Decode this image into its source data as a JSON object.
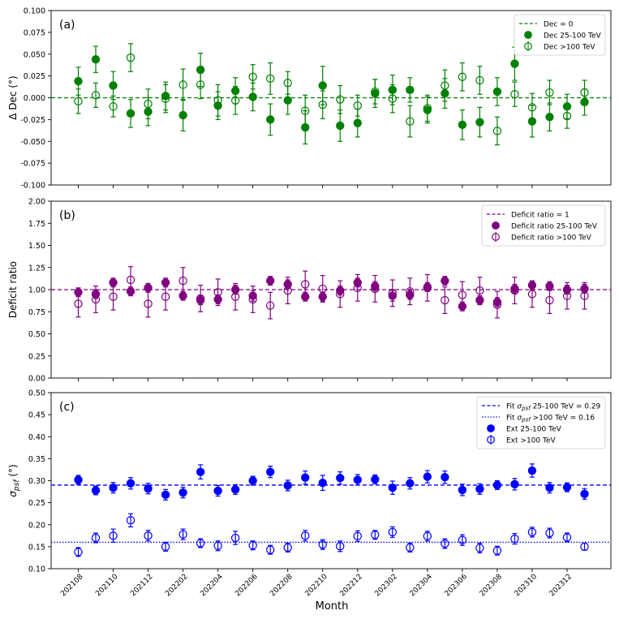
{
  "figure": {
    "xlabel": "Month"
  },
  "months": [
    "202108",
    "202109",
    "202110",
    "202111",
    "202112",
    "202201",
    "202202",
    "202203",
    "202204",
    "202205",
    "202206",
    "202207",
    "202208",
    "202209",
    "202210",
    "202211",
    "202212",
    "202301",
    "202302",
    "202303",
    "202304",
    "202305",
    "202306",
    "202307",
    "202308",
    "202309",
    "202310",
    "202311",
    "202312",
    "202401"
  ],
  "xtick_labels": [
    "202108",
    "202110",
    "202112",
    "202202",
    "202204",
    "202206",
    "202208",
    "202210",
    "202212",
    "202302",
    "202304",
    "202306",
    "202308",
    "202310",
    "202312"
  ],
  "colors": {
    "dec": "#008000",
    "deficit": "#800080",
    "ext": "#0000ff"
  },
  "chart_data": [
    {
      "type": "scatter",
      "panel_label": "(a)",
      "ylabel": "Δ Dec (°)",
      "ylim": [
        -0.1,
        0.1
      ],
      "yticks": [
        "-0.100",
        "-0.075",
        "-0.050",
        "-0.025",
        "0.000",
        "0.025",
        "0.050",
        "0.075",
        "0.100"
      ],
      "reference_line": {
        "label": "Dec = 0",
        "value": 0.0,
        "style": "dashed"
      },
      "legend_position": "top-right",
      "series": [
        {
          "name": "Dec 25-100 TeV",
          "filled": true,
          "values": [
            0.019,
            0.044,
            0.014,
            -0.018,
            -0.016,
            0.002,
            -0.02,
            0.032,
            -0.009,
            0.008,
            0.001,
            -0.025,
            -0.003,
            -0.034,
            0.014,
            -0.032,
            -0.029,
            0.005,
            0.009,
            0.009,
            -0.014,
            0.005,
            -0.031,
            -0.028,
            0.007,
            0.039,
            -0.027,
            -0.022,
            -0.01,
            -0.005
          ],
          "errors": [
            0.016,
            0.015,
            0.016,
            0.016,
            0.016,
            0.016,
            0.018,
            0.019,
            0.016,
            0.015,
            0.016,
            0.018,
            0.016,
            0.019,
            0.022,
            0.018,
            0.016,
            0.016,
            0.017,
            0.014,
            0.015,
            0.017,
            0.017,
            0.017,
            0.016,
            0.019,
            0.018,
            0.016,
            0.014,
            0.015
          ]
        },
        {
          "name": "Dec >100 TeV",
          "filled": false,
          "values": [
            -0.004,
            0.003,
            -0.01,
            0.046,
            -0.007,
            -0.001,
            0.015,
            0.015,
            -0.003,
            -0.003,
            0.024,
            0.022,
            0.017,
            -0.015,
            -0.008,
            -0.002,
            -0.009,
            0.007,
            -0.001,
            -0.027,
            -0.012,
            0.014,
            0.024,
            0.02,
            -0.038,
            0.004,
            -0.011,
            0.006,
            -0.021,
            0.006
          ],
          "errors": [
            0.014,
            0.014,
            0.012,
            0.016,
            0.017,
            0.016,
            0.018,
            0.016,
            0.018,
            0.016,
            0.014,
            0.018,
            0.013,
            0.018,
            0.016,
            0.016,
            0.012,
            0.014,
            0.016,
            0.018,
            0.015,
            0.018,
            0.016,
            0.016,
            0.016,
            0.014,
            0.016,
            0.014,
            0.014,
            0.014
          ]
        }
      ]
    },
    {
      "type": "scatter",
      "panel_label": "(b)",
      "ylabel": "Deficit ratio",
      "ylim": [
        0.0,
        2.0
      ],
      "yticks": [
        "0.00",
        "0.25",
        "0.50",
        "0.75",
        "1.00",
        "1.25",
        "1.50",
        "1.75",
        "2.00"
      ],
      "reference_line": {
        "label": "Deficit ratio = 1",
        "value": 1.0,
        "style": "dashed"
      },
      "legend_position": "top-right",
      "series": [
        {
          "name": "Deficit ratio 25-100 TeV",
          "filled": true,
          "values": [
            0.97,
            0.95,
            1.08,
            0.98,
            1.02,
            1.08,
            0.93,
            0.88,
            0.89,
            1.0,
            0.93,
            1.1,
            1.06,
            0.92,
            0.92,
            0.99,
            1.08,
            1.04,
            0.93,
            0.94,
            1.03,
            1.1,
            0.81,
            0.88,
            0.86,
            1.01,
            1.05,
            1.04,
            1.0,
            1.01
          ],
          "errors": [
            0.05,
            0.05,
            0.05,
            0.05,
            0.05,
            0.05,
            0.05,
            0.05,
            0.05,
            0.05,
            0.06,
            0.05,
            0.05,
            0.05,
            0.05,
            0.05,
            0.05,
            0.05,
            0.06,
            0.05,
            0.05,
            0.05,
            0.05,
            0.05,
            0.05,
            0.05,
            0.05,
            0.05,
            0.05,
            0.05
          ]
        },
        {
          "name": "Deficit ratio >100 TeV",
          "filled": false,
          "values": [
            0.84,
            0.89,
            0.92,
            1.11,
            0.84,
            0.92,
            1.1,
            0.9,
            0.97,
            0.92,
            0.89,
            0.82,
            0.99,
            1.06,
            1.01,
            0.95,
            1.02,
            1.01,
            0.96,
            0.98,
            1.02,
            0.88,
            0.94,
            0.99,
            0.83,
            0.99,
            0.95,
            0.88,
            0.93,
            0.93
          ],
          "errors": [
            0.15,
            0.15,
            0.15,
            0.15,
            0.15,
            0.15,
            0.15,
            0.15,
            0.15,
            0.15,
            0.15,
            0.15,
            0.15,
            0.15,
            0.15,
            0.15,
            0.15,
            0.15,
            0.15,
            0.15,
            0.15,
            0.15,
            0.15,
            0.15,
            0.15,
            0.15,
            0.15,
            0.15,
            0.15,
            0.15
          ]
        }
      ]
    },
    {
      "type": "scatter",
      "panel_label": "(c)",
      "ylabel": "σpsf (°)",
      "ylim": [
        0.1,
        0.5
      ],
      "yticks": [
        "0.10",
        "0.15",
        "0.20",
        "0.25",
        "0.30",
        "0.35",
        "0.40",
        "0.45",
        "0.50"
      ],
      "fit_lines": [
        {
          "label": "Fit σpsf 25-100 TeV = 0.29",
          "value": 0.29,
          "style": "dashed"
        },
        {
          "label": "Fit σpsf >100 TeV = 0.16",
          "value": 0.16,
          "style": "dotted"
        }
      ],
      "legend_position": "top-right",
      "series": [
        {
          "name": "Ext 25-100 TeV",
          "filled": true,
          "values": [
            0.302,
            0.278,
            0.284,
            0.294,
            0.282,
            0.268,
            0.273,
            0.32,
            0.277,
            0.28,
            0.3,
            0.32,
            0.289,
            0.307,
            0.295,
            0.306,
            0.302,
            0.303,
            0.284,
            0.294,
            0.309,
            0.308,
            0.279,
            0.281,
            0.29,
            0.292,
            0.323,
            0.284,
            0.285,
            0.27
          ],
          "errors": [
            0.01,
            0.01,
            0.012,
            0.013,
            0.012,
            0.012,
            0.012,
            0.016,
            0.012,
            0.011,
            0.01,
            0.013,
            0.012,
            0.015,
            0.017,
            0.014,
            0.012,
            0.01,
            0.015,
            0.013,
            0.014,
            0.014,
            0.013,
            0.012,
            0.01,
            0.013,
            0.015,
            0.012,
            0.01,
            0.012
          ]
        },
        {
          "name": "Ext >100 TeV",
          "filled": false,
          "values": [
            0.138,
            0.17,
            0.175,
            0.21,
            0.175,
            0.15,
            0.178,
            0.158,
            0.152,
            0.17,
            0.153,
            0.143,
            0.148,
            0.175,
            0.155,
            0.151,
            0.174,
            0.177,
            0.183,
            0.148,
            0.174,
            0.157,
            0.165,
            0.147,
            0.141,
            0.168,
            0.183,
            0.181,
            0.171,
            0.15
          ],
          "errors": [
            0.01,
            0.011,
            0.015,
            0.015,
            0.012,
            0.01,
            0.012,
            0.01,
            0.011,
            0.015,
            0.01,
            0.01,
            0.01,
            0.012,
            0.011,
            0.012,
            0.012,
            0.01,
            0.012,
            0.01,
            0.011,
            0.011,
            0.012,
            0.011,
            0.01,
            0.012,
            0.011,
            0.011,
            0.01,
            0.008
          ]
        }
      ]
    }
  ]
}
